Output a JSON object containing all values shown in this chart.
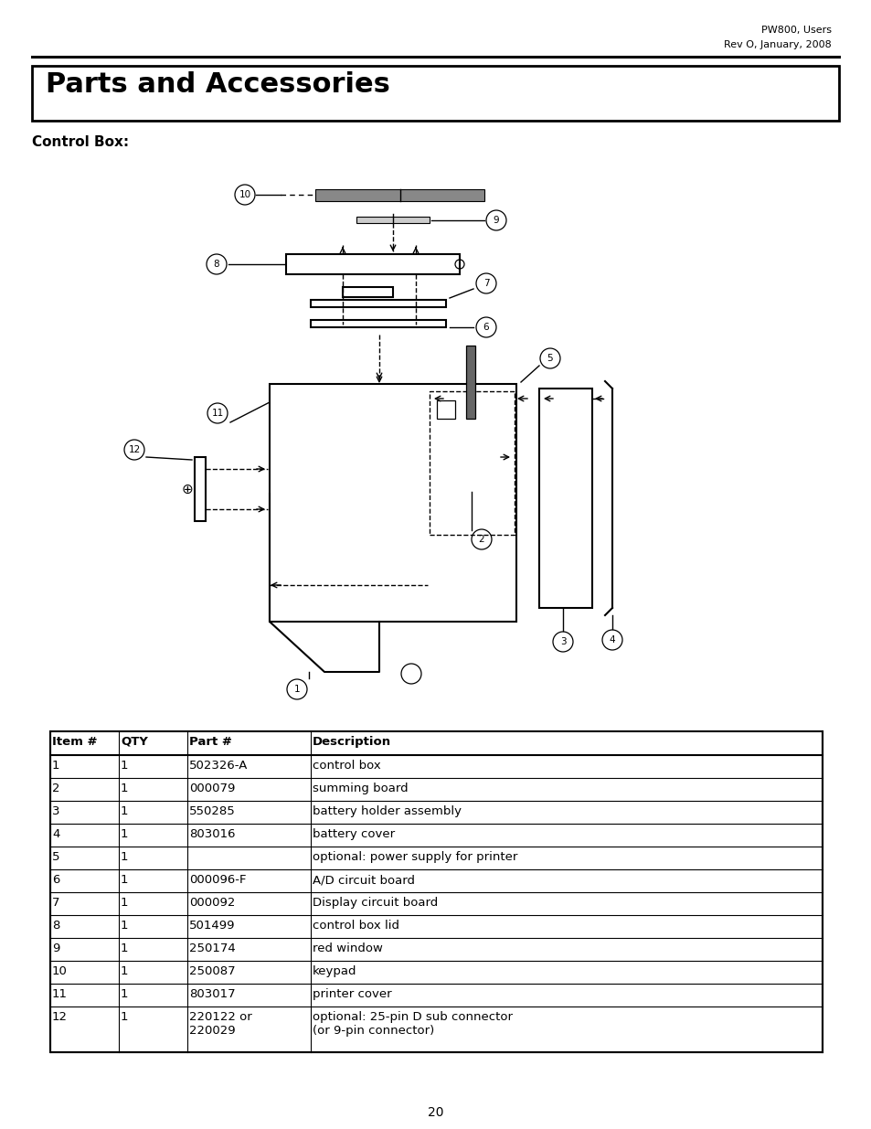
{
  "header_right_line1": "PW800, Users",
  "header_right_line2": "Rev O, January, 2008",
  "title": "Parts and Accessories",
  "subtitle": "Control Box:",
  "footer_page": "20",
  "table_headers": [
    "Item #",
    "QTY",
    "Part #",
    "Description"
  ],
  "table_rows": [
    [
      "1",
      "1",
      "502326-A",
      "control box"
    ],
    [
      "2",
      "1",
      "000079",
      "summing board"
    ],
    [
      "3",
      "1",
      "550285",
      "battery holder assembly"
    ],
    [
      "4",
      "1",
      "803016",
      "battery cover"
    ],
    [
      "5",
      "1",
      "",
      "optional: power supply for printer"
    ],
    [
      "6",
      "1",
      "000096-F",
      "A/D circuit board"
    ],
    [
      "7",
      "1",
      "000092",
      "Display circuit board"
    ],
    [
      "8",
      "1",
      "501499",
      "control box lid"
    ],
    [
      "9",
      "1",
      "250174",
      "red window"
    ],
    [
      "10",
      "1",
      "250087",
      "keypad"
    ],
    [
      "11",
      "1",
      "803017",
      "printer cover"
    ],
    [
      "12",
      "1",
      "220122 or\n220029",
      "optional: 25-pin D sub connector\n(or 9-pin connector)"
    ]
  ],
  "bg_color": "#ffffff",
  "text_color": "#000000"
}
